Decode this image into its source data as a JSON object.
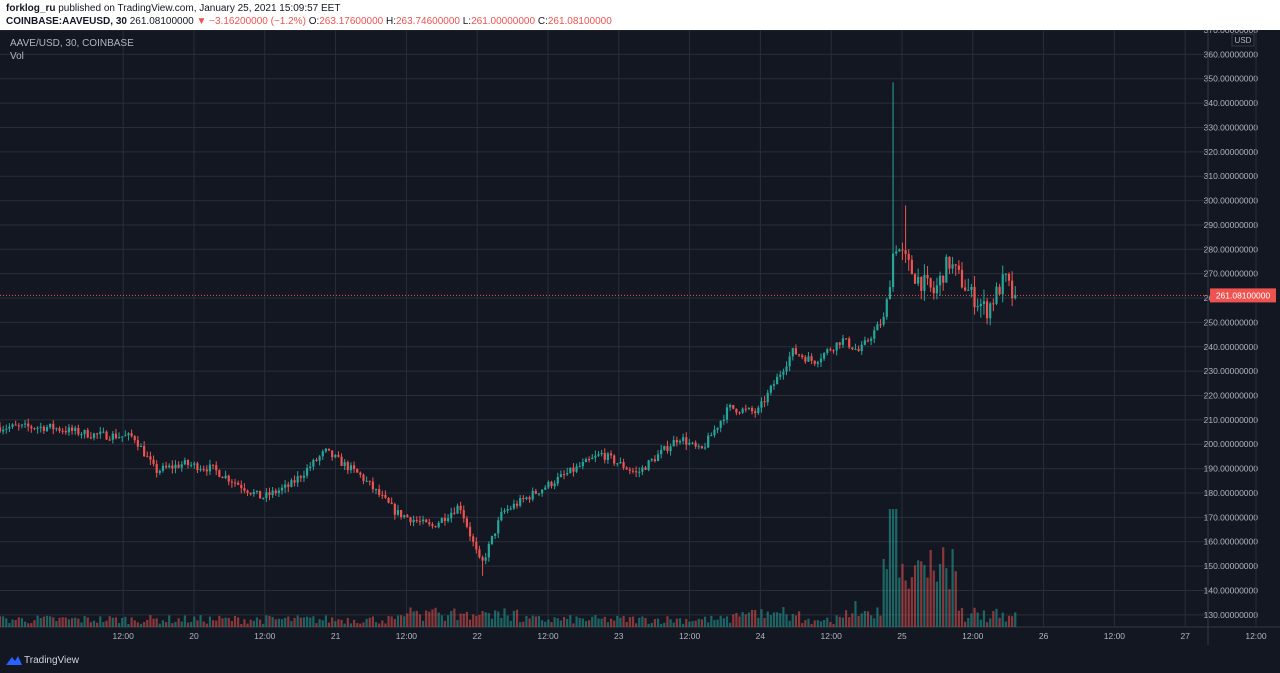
{
  "header": {
    "publisher": "forklog_ru",
    "published_text": "published on TradingView.com, January 25, 2021 15:09:57 EET",
    "symbol": "COINBASE:AAVEUSD, 30",
    "last": "261.08100000",
    "change": "▼ −3.16200000 (−1.2%)",
    "o_label": "O:",
    "o_value": "263.17600000",
    "h_label": "H:",
    "h_value": "263.74600000",
    "l_label": "L:",
    "l_value": "261.00000000",
    "c_label": "C:",
    "c_value": "261.08100000"
  },
  "legend": {
    "series": "AAVE/USD, 30, COINBASE",
    "volume": "Vol"
  },
  "footer": {
    "brand": "TradingView"
  },
  "colors": {
    "bg": "#131722",
    "grid": "#2a2e39",
    "up": "#26a69a",
    "down": "#ef5350",
    "text": "#b2b5be",
    "price_line": "#ef5350"
  },
  "chart_data": {
    "type": "candlestick",
    "currency": "USD",
    "ylim": [
      125,
      370
    ],
    "y_ticks": [
      "370.00000000",
      "360.00000000",
      "350.00000000",
      "340.00000000",
      "330.00000000",
      "320.00000000",
      "310.00000000",
      "300.00000000",
      "290.00000000",
      "280.00000000",
      "270.00000000",
      "260.00000000",
      "250.00000000",
      "240.00000000",
      "230.00000000",
      "220.00000000",
      "210.00000000",
      "200.00000000",
      "190.00000000",
      "180.00000000",
      "170.00000000",
      "160.00000000",
      "150.00000000",
      "140.00000000",
      "130.00000000"
    ],
    "x_ticks": [
      "12:00",
      "20",
      "12:00",
      "21",
      "12:00",
      "22",
      "12:00",
      "23",
      "12:00",
      "24",
      "12:00",
      "25",
      "12:00",
      "26",
      "12:00",
      "27",
      "12:00"
    ],
    "last_price": 261.081,
    "last_price_label": "261.08100000",
    "price_keypoints": [
      {
        "day": 19.0,
        "price": 207
      },
      {
        "day": 19.3,
        "price": 204
      },
      {
        "day": 19.6,
        "price": 203
      },
      {
        "day": 19.75,
        "price": 189
      },
      {
        "day": 19.95,
        "price": 192
      },
      {
        "day": 20.15,
        "price": 190
      },
      {
        "day": 20.5,
        "price": 178
      },
      {
        "day": 20.7,
        "price": 183
      },
      {
        "day": 20.95,
        "price": 197
      },
      {
        "day": 21.2,
        "price": 187
      },
      {
        "day": 21.45,
        "price": 172
      },
      {
        "day": 21.7,
        "price": 166
      },
      {
        "day": 21.9,
        "price": 175
      },
      {
        "day": 22.05,
        "price": 150
      },
      {
        "day": 22.2,
        "price": 172
      },
      {
        "day": 22.6,
        "price": 186
      },
      {
        "day": 22.9,
        "price": 196
      },
      {
        "day": 23.15,
        "price": 188
      },
      {
        "day": 23.45,
        "price": 203
      },
      {
        "day": 23.6,
        "price": 197
      },
      {
        "day": 23.8,
        "price": 215
      },
      {
        "day": 24.0,
        "price": 213
      },
      {
        "day": 24.25,
        "price": 238
      },
      {
        "day": 24.4,
        "price": 234
      },
      {
        "day": 24.6,
        "price": 243
      },
      {
        "day": 24.72,
        "price": 238
      },
      {
        "day": 24.9,
        "price": 252
      },
      {
        "day": 24.97,
        "price": 283
      },
      {
        "day": 25.1,
        "price": 270
      },
      {
        "day": 25.25,
        "price": 262
      },
      {
        "day": 25.35,
        "price": 275
      },
      {
        "day": 25.5,
        "price": 262
      },
      {
        "day": 25.62,
        "price": 255
      },
      {
        "day": 25.75,
        "price": 268
      },
      {
        "day": 25.8,
        "price": 261.08
      }
    ],
    "wick_extremes": [
      {
        "day": 24.93,
        "high": 348.5
      },
      {
        "day": 25.02,
        "high": 298
      },
      {
        "day": 22.03,
        "low": 146
      }
    ],
    "volume_peak_day": 24.93
  }
}
